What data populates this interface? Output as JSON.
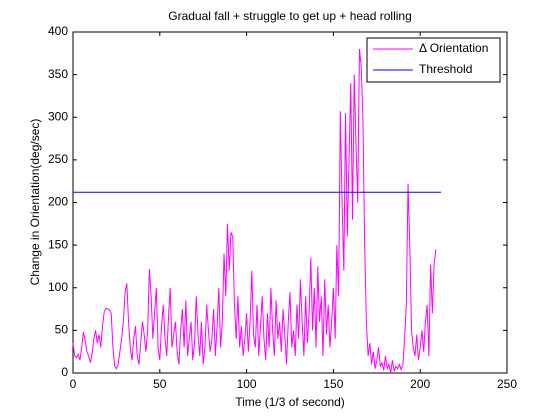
{
  "chart_data": {
    "type": "line",
    "title": "Gradual fall + struggle to get up + head rolling",
    "x_label": "Time (1/3 of second)",
    "y_label": "Change in Orientation(deg/sec)",
    "xlim": [
      0,
      250
    ],
    "xticks": [
      0,
      50,
      100,
      150,
      200,
      250
    ],
    "ylim": [
      0,
      400
    ],
    "yticks": [
      0,
      50,
      100,
      150,
      200,
      250,
      300,
      350,
      400
    ],
    "legend_position": "upper right",
    "series": [
      {
        "name": "Δ Orientation",
        "color": "#ff00ff",
        "values": [
          35,
          20,
          18,
          22,
          15,
          30,
          48,
          38,
          25,
          20,
          12,
          22,
          40,
          50,
          35,
          45,
          30,
          55,
          72,
          76,
          75,
          74,
          70,
          30,
          8,
          5,
          10,
          25,
          40,
          60,
          95,
          105,
          60,
          30,
          15,
          40,
          55,
          20,
          10,
          35,
          60,
          45,
          25,
          50,
          122,
          90,
          40,
          70,
          100,
          30,
          15,
          55,
          80,
          40,
          20,
          65,
          100,
          30,
          45,
          60,
          25,
          10,
          50,
          75,
          30,
          85,
          20,
          40,
          60,
          15,
          35,
          90,
          45,
          20,
          60,
          10,
          30,
          80,
          50,
          25,
          40,
          75,
          20,
          55,
          100,
          30,
          60,
          140,
          90,
          175,
          120,
          165,
          160,
          80,
          40,
          90,
          30,
          55,
          20,
          40,
          70,
          25,
          60,
          120,
          45,
          30,
          80,
          20,
          55,
          90,
          40,
          15,
          70,
          30,
          100,
          50,
          20,
          85,
          40,
          60,
          25,
          75,
          45,
          10,
          60,
          95,
          30,
          50,
          20,
          80,
          40,
          110,
          60,
          20,
          90,
          35,
          70,
          135,
          50,
          100,
          30,
          125,
          60,
          90,
          20,
          110,
          45,
          80,
          30,
          60,
          100,
          40,
          150,
          90,
          307,
          200,
          120,
          305,
          160,
          250,
          340,
          180,
          350,
          270,
          200,
          380,
          360,
          300,
          150,
          60,
          20,
          35,
          10,
          25,
          5,
          15,
          30,
          8,
          12,
          3,
          20,
          5,
          10,
          0,
          15,
          2,
          8,
          5,
          10,
          4,
          10,
          40,
          80,
          222,
          150,
          50,
          30,
          20,
          45,
          15,
          30,
          50,
          25,
          60,
          80,
          20,
          127,
          70,
          127,
          145
        ]
      },
      {
        "name": "Threshold",
        "color": "#0000ff",
        "x": [
          0,
          212
        ],
        "values": [
          212,
          212
        ]
      }
    ]
  }
}
